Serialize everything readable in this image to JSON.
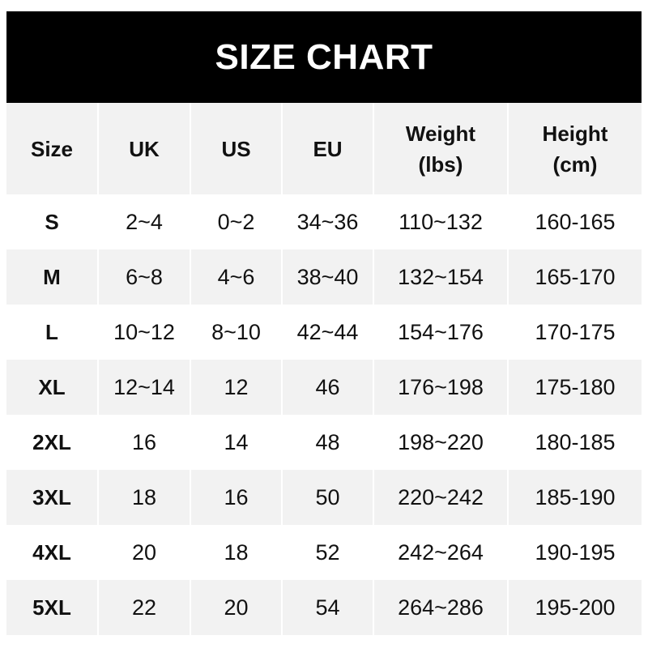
{
  "title": "SIZE CHART",
  "table": {
    "headers": [
      {
        "line1": "Size",
        "line2": ""
      },
      {
        "line1": "UK",
        "line2": ""
      },
      {
        "line1": "US",
        "line2": ""
      },
      {
        "line1": "EU",
        "line2": ""
      },
      {
        "line1": "Weight",
        "line2": "(lbs)"
      },
      {
        "line1": "Height",
        "line2": "(cm)"
      }
    ],
    "rows": [
      [
        "S",
        "2~4",
        "0~2",
        "34~36",
        "110~132",
        "160-165"
      ],
      [
        "M",
        "6~8",
        "4~6",
        "38~40",
        "132~154",
        "165-170"
      ],
      [
        "L",
        "10~12",
        "8~10",
        "42~44",
        "154~176",
        "170-175"
      ],
      [
        "XL",
        "12~14",
        "12",
        "46",
        "176~198",
        "175-180"
      ],
      [
        "2XL",
        "16",
        "14",
        "48",
        "198~220",
        "180-185"
      ],
      [
        "3XL",
        "18",
        "16",
        "50",
        "220~242",
        "185-190"
      ],
      [
        "4XL",
        "20",
        "18",
        "52",
        "242~264",
        "190-195"
      ],
      [
        "5XL",
        "22",
        "20",
        "54",
        "264~286",
        "195-200"
      ]
    ]
  },
  "colors": {
    "title_bg": "#000000",
    "stripe": "#f2f2f2",
    "text": "#111111"
  }
}
